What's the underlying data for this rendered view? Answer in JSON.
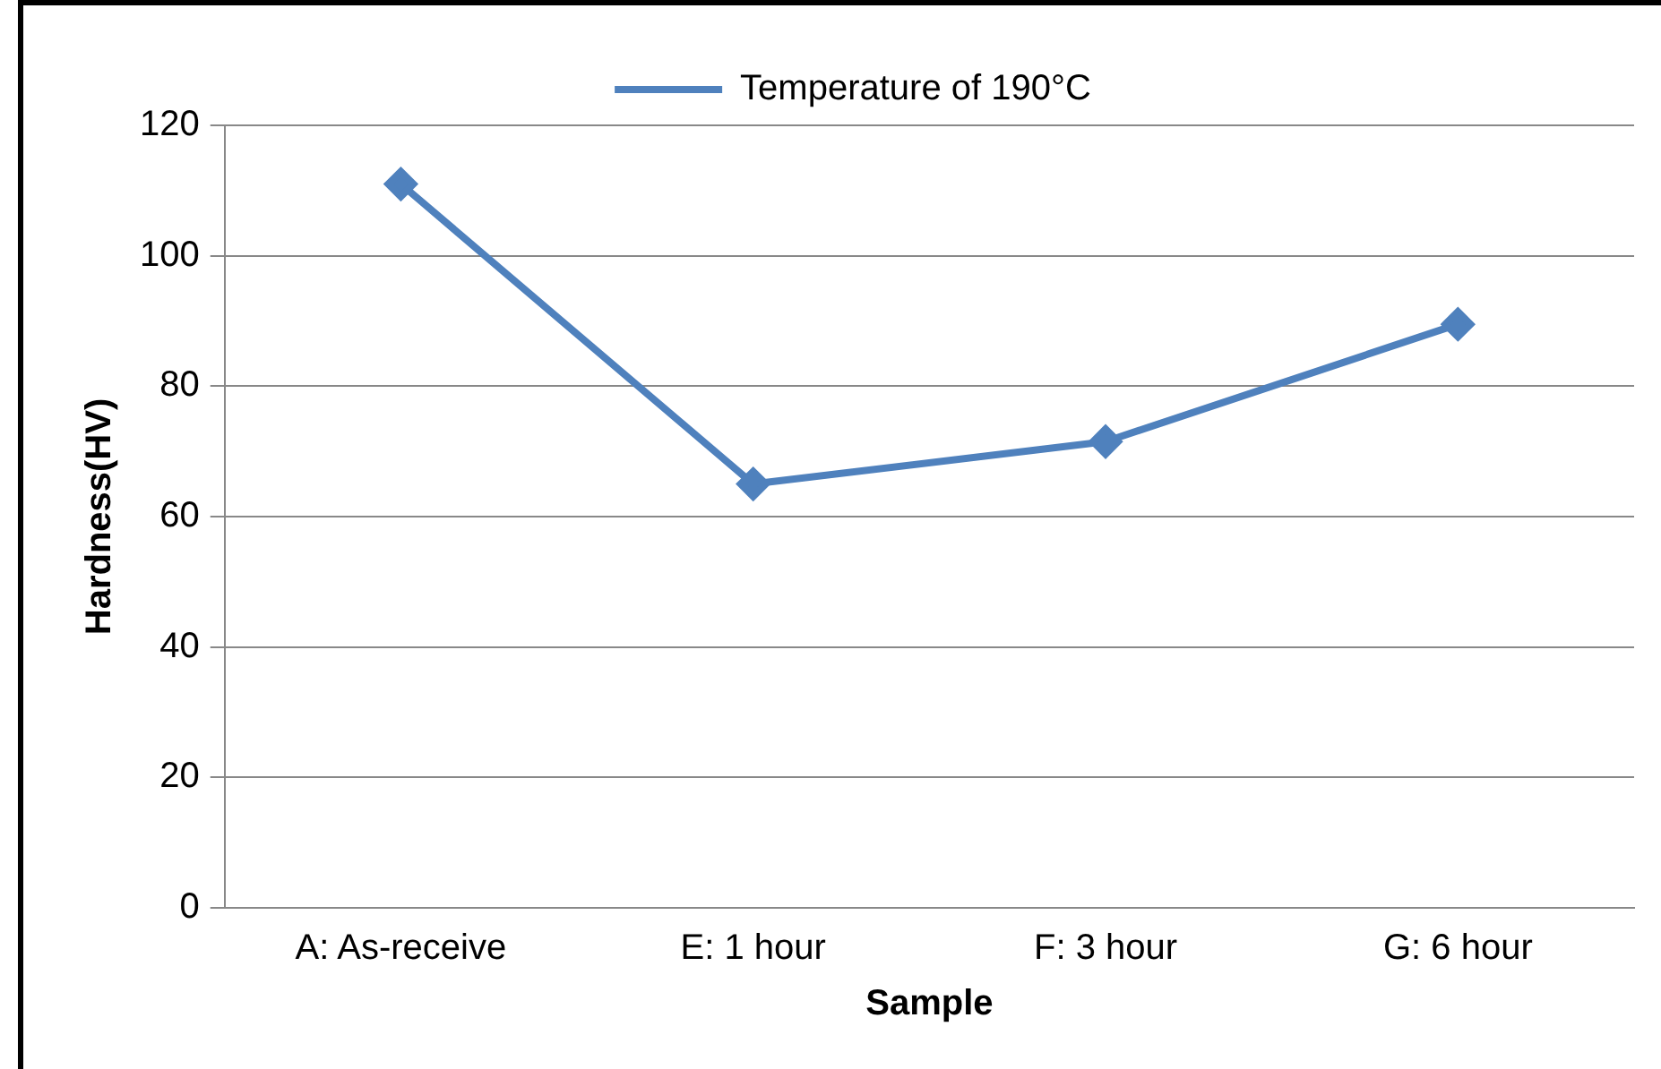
{
  "chart_data": {
    "type": "line",
    "xlabel": "Sample",
    "ylabel": "Hardness(HV)",
    "categories": [
      "A: As-receive",
      "E: 1 hour",
      "F: 3 hour",
      "G: 6 hour"
    ],
    "series": [
      {
        "name": "Temperature of 190°C",
        "color": "#4f81bd",
        "values": [
          111,
          65,
          71.5,
          89.5
        ]
      }
    ],
    "ylim": [
      0,
      120
    ],
    "yticks": [
      0,
      20,
      40,
      60,
      80,
      100,
      120
    ],
    "grid": "y",
    "legend": "top",
    "marker": "diamond",
    "line_style": "solid"
  }
}
